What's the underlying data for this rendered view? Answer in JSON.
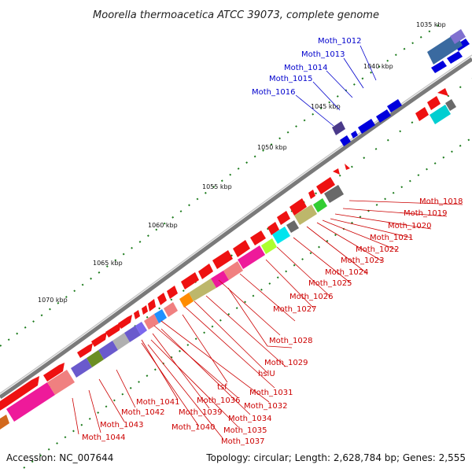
{
  "header": {
    "title": "Moorella thermoacetica ATCC 39073, complete genome"
  },
  "footer": {
    "accession": "Accession: NC_007644",
    "summary": "Topology: circular; Length: 2,628,784 bp; Genes: 2,555"
  },
  "scale_labels": [
    "1035 kbp",
    "1040 kbp",
    "1045 kbp",
    "1050 kbp",
    "1055 kbp",
    "1060 kbp",
    "1065 kbp",
    "1070 kbp"
  ],
  "genes_blue": [
    "Moth_1012",
    "Moth_1013",
    "Moth_1014",
    "Moth_1015",
    "Moth_1016"
  ],
  "genes_red": [
    "Moth_1018",
    "Moth_1019",
    "Moth_1020",
    "Moth_1021",
    "Moth_1022",
    "Moth_1023",
    "Moth_1024",
    "Moth_1025",
    "Moth_1026",
    "Moth_1027",
    "Moth_1028",
    "Moth_1029",
    "hslU",
    "Moth_1031",
    "tsf",
    "Moth_1032",
    "Moth_1036",
    "Moth_1034",
    "Moth_1039",
    "Moth_1035",
    "Moth_1041",
    "Moth_1040",
    "Moth_1037",
    "Moth_1042",
    "Moth_1043",
    "Moth_1044"
  ],
  "colors": {
    "backbone": "#8a8a8a",
    "forward_gene": "#ee1111",
    "reverse_gene": "#0000dd",
    "red_label": "#cc0000",
    "blue_label": "#0000cc",
    "tick": "#1a7a1a"
  }
}
